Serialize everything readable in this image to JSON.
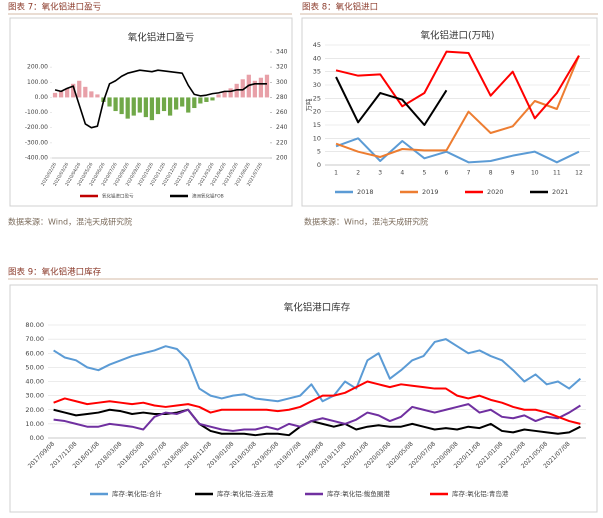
{
  "chart_data": [
    {
      "type": "bar",
      "figure_label": "图表 7：氧化铝进口盈亏",
      "title": "氧化铝进口盈亏",
      "source": "数据来源：Wind，混沌天成研究院",
      "grid": false,
      "categories": [
        "2020/02/26",
        null,
        "2020/03/26",
        null,
        "2020/04/26",
        null,
        "2020/05/26",
        null,
        "2020/06/26",
        null,
        "2020/07/26",
        null,
        "2020/08/26",
        null,
        "2020/09/26",
        null,
        "2020/10/26",
        null,
        "2020/11/26",
        null,
        "2020/12/26",
        null,
        "2021/01/26",
        null,
        "2021/02/26",
        null,
        "2021/03/26",
        null,
        "2021/04/26",
        null,
        "2021/05/26",
        null,
        "2021/06/26",
        null,
        "2021/07/26",
        null
      ],
      "ylim": [
        -400,
        300
      ],
      "yticks": [
        {
          "value": -400,
          "label": "-400.00"
        },
        {
          "value": -300,
          "label": "-300.00"
        },
        {
          "value": -200,
          "label": "-200.00"
        },
        {
          "value": -100,
          "label": "-100.00"
        },
        {
          "value": 0,
          "label": "0.00"
        },
        {
          "value": 100,
          "label": "100.00"
        },
        {
          "value": 200,
          "label": "200.00"
        }
      ],
      "y2lim": [
        200,
        340
      ],
      "y2ticks": [
        200,
        220,
        240,
        260,
        280,
        300,
        320,
        340
      ],
      "series": [
        {
          "name": "氧化铝进口盈亏",
          "type": "bar",
          "color": "#e8a0a8",
          "negative_color": "#70a848",
          "legend_color": "#c00000",
          "values": [
            30,
            45,
            60,
            90,
            110,
            70,
            40,
            20,
            -30,
            -60,
            -90,
            -110,
            -140,
            -120,
            -100,
            -130,
            -150,
            -110,
            -90,
            -120,
            -80,
            -60,
            -100,
            -70,
            -40,
            -30,
            -20,
            20,
            40,
            60,
            90,
            120,
            150,
            110,
            130,
            150
          ]
        },
        {
          "name": "澳洲氧化铝FOB",
          "type": "line",
          "axis": "y2",
          "color": "#000000",
          "values": [
            290,
            288,
            292,
            295,
            270,
            245,
            240,
            242,
            275,
            298,
            302,
            308,
            312,
            314,
            316,
            315,
            314,
            316,
            315,
            314,
            313,
            312,
            296,
            284,
            282,
            283,
            285,
            286,
            288,
            288,
            290,
            290,
            296,
            298,
            298,
            298
          ]
        }
      ]
    },
    {
      "type": "line",
      "figure_label": "图表 8：氧化铝进口",
      "title": "氧化铝进口(万吨)",
      "source": "数据来源：Wind，混沌天成研究院",
      "y_label": "万吨",
      "grid": true,
      "categories": [
        1,
        2,
        3,
        4,
        5,
        6,
        7,
        8,
        9,
        10,
        11,
        12
      ],
      "ylim": [
        0,
        45
      ],
      "yticks": [
        0,
        5,
        10,
        15,
        20,
        25,
        30,
        35,
        40,
        45
      ],
      "series": [
        {
          "name": "2018",
          "color": "#5b9bd5",
          "values": [
            7,
            10,
            1.5,
            9,
            2.5,
            5,
            1,
            1.5,
            3.5,
            5,
            1,
            5
          ]
        },
        {
          "name": "2019",
          "color": "#ed7d31",
          "values": [
            8,
            5,
            3,
            6,
            5.5,
            5.5,
            20,
            12,
            14.5,
            24,
            21,
            41
          ]
        },
        {
          "name": "2020",
          "color": "#ff0000",
          "values": [
            35.5,
            33.5,
            34,
            22,
            27,
            42.5,
            42,
            26,
            35,
            17.5,
            27,
            41
          ]
        },
        {
          "name": "2021",
          "color": "#000000",
          "values": [
            33,
            16,
            27,
            24.5,
            15,
            28,
            null,
            null,
            null,
            null,
            null,
            null
          ]
        }
      ]
    },
    {
      "type": "line",
      "figure_label": "图表 9：氧化铝港口库存",
      "title": "氧化铝港口库存",
      "grid": true,
      "categories": [
        "2017/09/08",
        null,
        "2017/11/08",
        null,
        "2018/01/08",
        null,
        "2018/03/08",
        null,
        "2018/05/08",
        null,
        "2018/07/08",
        null,
        "2018/09/08",
        null,
        "2018/11/08",
        null,
        "2019/01/08",
        null,
        "2019/03/08",
        null,
        "2019/05/08",
        null,
        "2019/07/08",
        null,
        "2019/09/08",
        null,
        "2019/11/08",
        null,
        "2020/01/08",
        null,
        "2020/03/08",
        null,
        "2020/05/08",
        null,
        "2020/07/08",
        null,
        "2020/09/08",
        null,
        "2020/11/08",
        null,
        "2021/01/08",
        null,
        "2021/03/08",
        null,
        "2021/05/08",
        null,
        "2021/07/08",
        null
      ],
      "ylim": [
        0,
        80
      ],
      "yticks": [
        {
          "value": 0,
          "label": "0.00"
        },
        {
          "value": 10,
          "label": "10.00"
        },
        {
          "value": 20,
          "label": "20.00"
        },
        {
          "value": 30,
          "label": "30.00"
        },
        {
          "value": 40,
          "label": "40.00"
        },
        {
          "value": 50,
          "label": "50.00"
        },
        {
          "value": 60,
          "label": "60.00"
        },
        {
          "value": 70,
          "label": "70.00"
        },
        {
          "value": 80,
          "label": "80.00"
        }
      ],
      "series": [
        {
          "name": "库存:氧化铝:合计",
          "color": "#5b9bd5",
          "values": [
            62,
            57,
            55,
            50,
            48,
            52,
            55,
            58,
            60,
            62,
            65,
            63,
            55,
            35,
            30,
            28,
            30,
            31,
            28,
            27,
            26,
            28,
            30,
            38,
            26,
            30,
            40,
            35,
            55,
            60,
            42,
            48,
            55,
            58,
            68,
            70,
            65,
            60,
            62,
            58,
            55,
            48,
            40,
            45,
            38,
            40,
            35,
            42
          ]
        },
        {
          "name": "库存:氧化铝:连云港",
          "color": "#000000",
          "values": [
            20,
            18,
            16,
            17,
            18,
            20,
            19,
            17,
            18,
            17,
            17,
            18,
            20,
            10,
            5,
            3,
            3,
            3,
            2,
            3,
            3,
            2,
            8,
            12,
            10,
            8,
            10,
            6,
            8,
            9,
            8,
            8,
            10,
            8,
            6,
            7,
            6,
            8,
            7,
            10,
            5,
            4,
            6,
            5,
            4,
            3,
            4,
            8
          ]
        },
        {
          "name": "库存:氧化铝:鲅鱼圈港",
          "color": "#7030a0",
          "values": [
            13,
            12,
            10,
            8,
            8,
            10,
            9,
            8,
            6,
            15,
            18,
            17,
            20,
            10,
            8,
            6,
            5,
            6,
            6,
            8,
            6,
            10,
            8,
            12,
            14,
            12,
            10,
            13,
            18,
            16,
            12,
            15,
            22,
            20,
            18,
            20,
            22,
            24,
            18,
            20,
            15,
            14,
            16,
            12,
            15,
            14,
            18,
            23
          ]
        },
        {
          "name": "库存:氧化铝:青岛港",
          "color": "#ff0000",
          "values": [
            25,
            28,
            26,
            24,
            25,
            26,
            25,
            24,
            25,
            23,
            22,
            23,
            24,
            22,
            18,
            20,
            20,
            20,
            20,
            20,
            19,
            20,
            22,
            26,
            30,
            30,
            32,
            36,
            40,
            38,
            36,
            38,
            37,
            36,
            35,
            35,
            30,
            28,
            30,
            27,
            25,
            22,
            20,
            20,
            18,
            15,
            12,
            10
          ]
        }
      ]
    }
  ]
}
